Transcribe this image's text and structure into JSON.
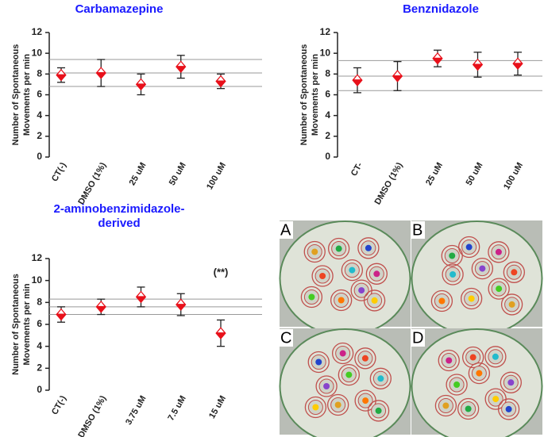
{
  "chart_data": [
    {
      "type": "errorbar",
      "title": [
        "Carbamazepine"
      ],
      "ylabel": [
        "Number of Spontaneous",
        "Movements per min"
      ],
      "categories": [
        "CT(-)",
        "DMSO (1%)",
        "25 uM",
        "50 uM",
        "100 uM"
      ],
      "values": [
        7.9,
        8.1,
        7.0,
        8.7,
        7.3
      ],
      "errors": [
        0.7,
        1.3,
        1.0,
        1.1,
        0.7
      ],
      "reference_lines": [
        9.4,
        8.1,
        6.8
      ],
      "color": "#e8101a",
      "ylim": [
        0,
        12
      ],
      "yticks": [
        0,
        2,
        4,
        6,
        8,
        10,
        12
      ]
    },
    {
      "type": "errorbar",
      "title": [
        "Benznidazole"
      ],
      "ylabel": [
        "Number of Spontaneous",
        "Movements per min"
      ],
      "categories": [
        "CT-",
        "DMSO (1%)",
        "25 uM",
        "50 uM",
        "100 uM"
      ],
      "values": [
        7.4,
        7.8,
        9.5,
        8.9,
        9.0
      ],
      "errors": [
        1.2,
        1.4,
        0.8,
        1.2,
        1.1
      ],
      "reference_lines": [
        9.3,
        7.8,
        6.4
      ],
      "color": "#e8101a",
      "ylim": [
        0,
        12
      ],
      "yticks": [
        0,
        2,
        4,
        6,
        8,
        10,
        12
      ]
    },
    {
      "type": "errorbar",
      "title": [
        "2-aminobenzimidazole-",
        "derived"
      ],
      "ylabel": [
        "Number of Spontaneous",
        "Movements per min"
      ],
      "categories": [
        "CT(-)",
        "DMSO (1%)",
        "3.75 uM",
        "7.5 uM",
        "15 uM"
      ],
      "values": [
        6.9,
        7.6,
        8.5,
        7.8,
        5.2
      ],
      "errors": [
        0.7,
        0.7,
        0.9,
        1.0,
        1.2
      ],
      "reference_lines": [
        8.3,
        7.6,
        6.9
      ],
      "color": "#e8101a",
      "annotations": [
        {
          "text": "(**)",
          "category": 4,
          "y": 10.7
        }
      ],
      "ylim": [
        0,
        12
      ],
      "yticks": [
        0,
        2,
        4,
        6,
        8,
        10,
        12
      ]
    }
  ],
  "image_panels": {
    "labels": [
      "A",
      "B",
      "C",
      "D"
    ]
  }
}
